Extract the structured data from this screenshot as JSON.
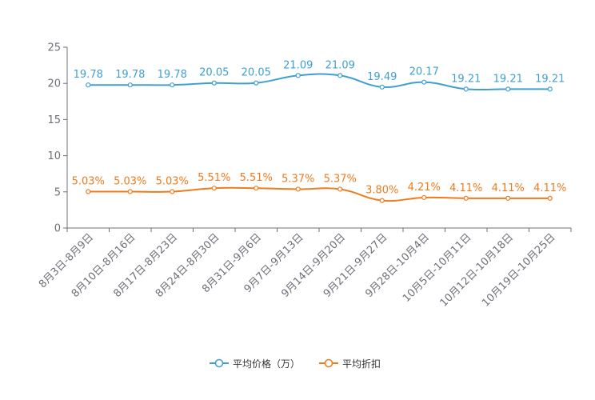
{
  "chart_data": {
    "type": "line",
    "title": "",
    "xlabel": "",
    "ylabel": "",
    "ylim": [
      0,
      25
    ],
    "yticks": [
      0,
      5,
      10,
      15,
      20,
      25
    ],
    "grid": false,
    "legend_position": "bottom-center",
    "categories": [
      "8月3日-8月9日",
      "8月10日-8月16日",
      "8月17日-8月23日",
      "8月24日-8月30日",
      "8月31日-9月6日",
      "9月7日-9月13日",
      "9月14日-9月20日",
      "9月21日-9月27日",
      "9月28日-10月4日",
      "10月5日-10月11日",
      "10月12日-10月18日",
      "10月19日-10月25日"
    ],
    "series": [
      {
        "name": "平均价格（万）",
        "color": "#3fa0d0",
        "values": [
          19.78,
          19.78,
          19.78,
          20.05,
          20.05,
          21.09,
          21.09,
          19.49,
          20.17,
          19.21,
          19.21,
          19.21
        ],
        "labels": [
          "19.78",
          "19.78",
          "19.78",
          "20.05",
          "20.05",
          "21.09",
          "21.09",
          "19.49",
          "20.17",
          "19.21",
          "19.21",
          "19.21"
        ]
      },
      {
        "name": "平均折扣",
        "color": "#f07b1d",
        "values": [
          5.03,
          5.03,
          5.03,
          5.51,
          5.51,
          5.37,
          5.37,
          3.8,
          4.21,
          4.11,
          4.11,
          4.11
        ],
        "labels": [
          "5.03%",
          "5.03%",
          "5.03%",
          "5.51%",
          "5.51%",
          "5.37%",
          "5.37%",
          "3.80%",
          "4.21%",
          "4.11%",
          "4.11%",
          "4.11%"
        ]
      }
    ]
  }
}
